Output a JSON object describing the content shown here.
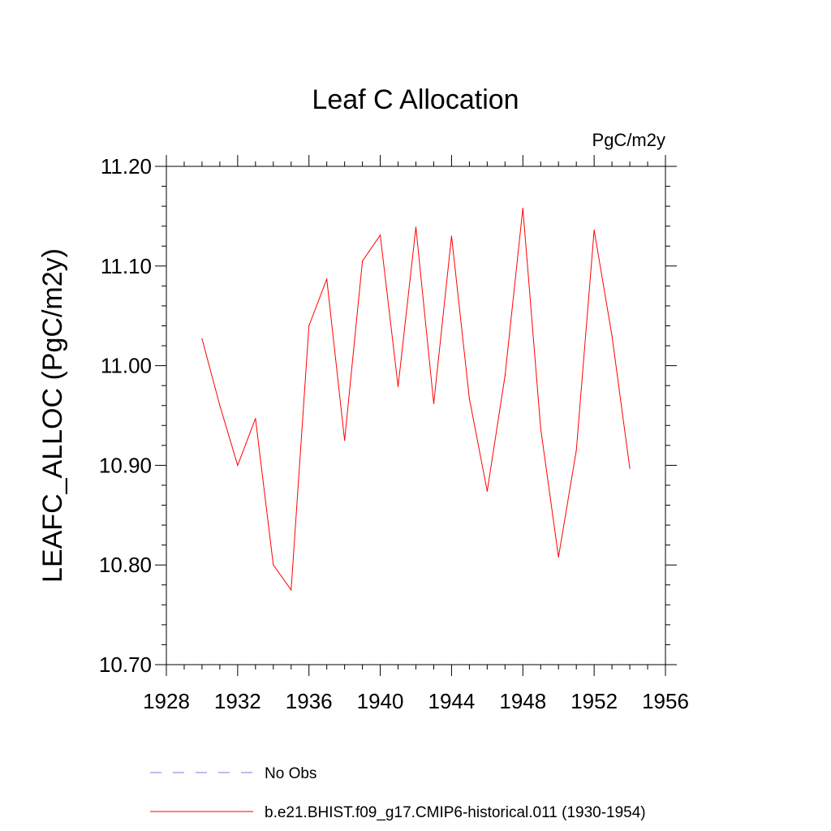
{
  "chart_data": {
    "type": "line",
    "title": "Leaf C Allocation",
    "units_label": "PgC/m2y",
    "ylabel": "LEAFC_ALLOC  (PgC/m2y)",
    "xlabel": "",
    "xlim": [
      1928,
      1956
    ],
    "ylim": [
      10.7,
      11.2
    ],
    "x_ticks": [
      1928,
      1932,
      1936,
      1940,
      1944,
      1948,
      1952,
      1956
    ],
    "y_ticks": [
      10.7,
      10.8,
      10.9,
      11.0,
      11.1,
      11.2
    ],
    "y_tick_labels": [
      "10.70",
      "10.80",
      "10.90",
      "11.00",
      "11.10",
      "11.20"
    ],
    "grid": false,
    "legend_position": "bottom",
    "series": [
      {
        "name": "No Obs",
        "color": "#7b7bd6",
        "dash": "dashed",
        "x": [],
        "y": []
      },
      {
        "name": "b.e21.BHIST.f09_g17.CMIP6-historical.011 (1930-1954)",
        "color": "#ff0000",
        "dash": "solid",
        "x": [
          1930,
          1931,
          1932,
          1933,
          1934,
          1935,
          1936,
          1937,
          1938,
          1939,
          1940,
          1941,
          1942,
          1943,
          1944,
          1945,
          1946,
          1947,
          1948,
          1949,
          1950,
          1951,
          1952,
          1953,
          1954
        ],
        "y": [
          11.027,
          10.96,
          10.9,
          10.947,
          10.8,
          10.775,
          11.04,
          11.087,
          10.925,
          11.105,
          11.131,
          10.979,
          11.139,
          10.962,
          11.13,
          10.967,
          10.874,
          10.99,
          11.158,
          10.937,
          10.808,
          10.915,
          11.136,
          11.03,
          10.897
        ]
      }
    ]
  }
}
